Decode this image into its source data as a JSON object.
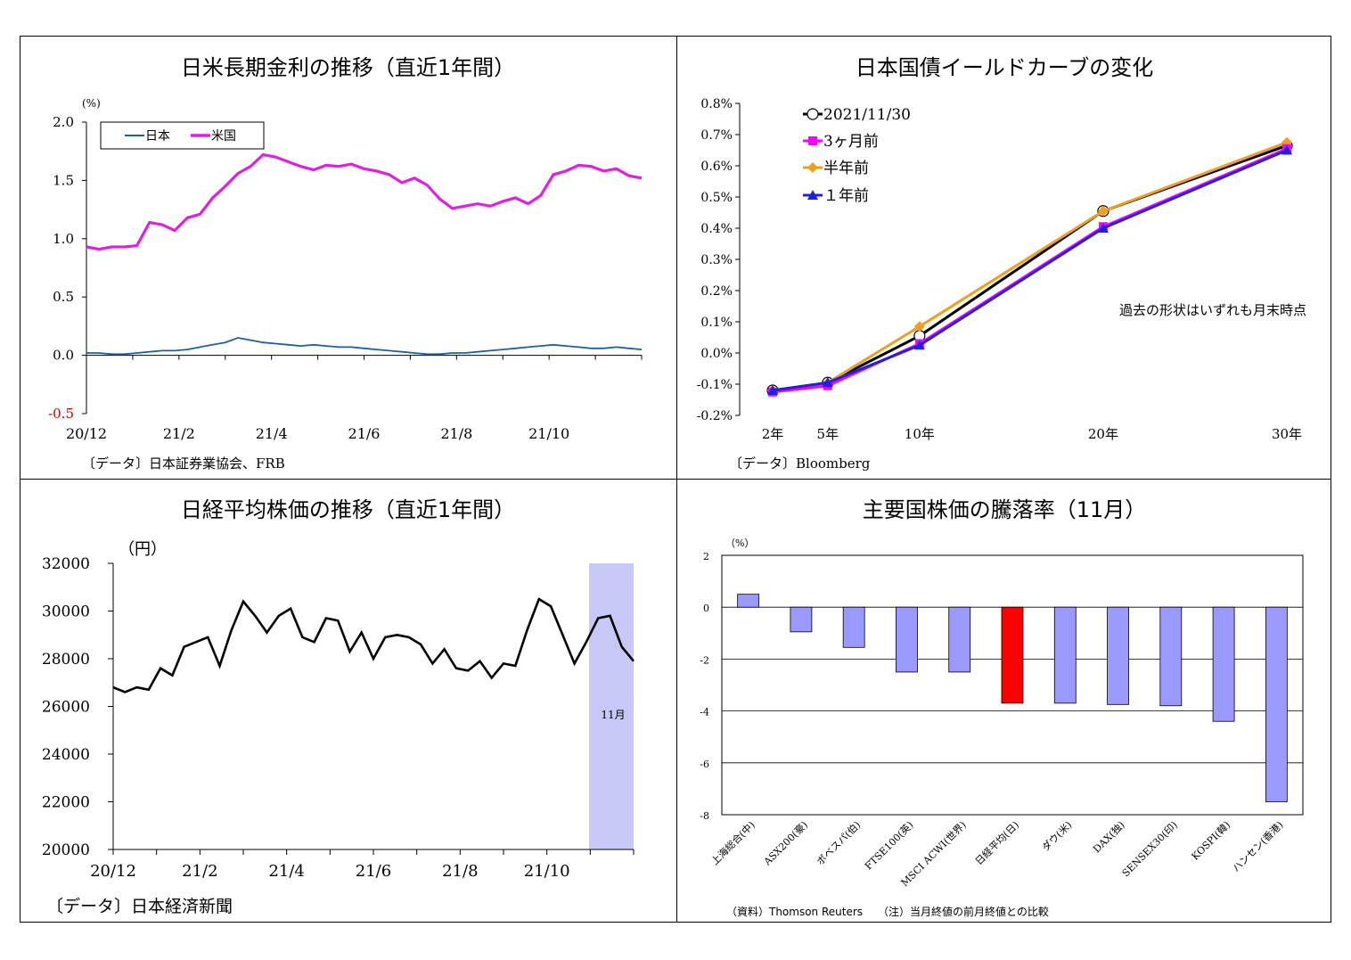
{
  "charts": {
    "rates": {
      "title": "日米長期金利の推移（直近1年間）",
      "unit": "(%)",
      "source": "〔データ〕日本証券業協会、FRB",
      "colors": {
        "japan": "#1f5fa0",
        "us": "#e020e0"
      }
    },
    "yield": {
      "title": "日本国債イールドカーブの変化",
      "note": "過去の形状はいずれも月末時点",
      "source": "〔データ〕Bloomberg",
      "colors": {
        "current": "#000000",
        "m3": "#ff00ff",
        "m6": "#f0a020",
        "y1": "#2020e0"
      }
    },
    "nikkei": {
      "title": "日経平均株価の推移（直近1年間）",
      "unit": "（円）",
      "source": "〔データ〕日本経済新聞",
      "highlight_label": "11月",
      "colors": {
        "line": "#000000",
        "highlight": "#c8c8f8"
      }
    },
    "stocks": {
      "title": "主要国株価の騰落率（11月）",
      "unit": "（%）",
      "source": "（資料）Thomson Reuters",
      "note": "（注）当月終値の前月終値との比較",
      "colors": {
        "bar": "#9999ff",
        "highlight": "#ff0000"
      }
    }
  },
  "chart_data": [
    {
      "type": "line",
      "id": "rates",
      "x_ticks": [
        "20/12",
        "21/2",
        "21/4",
        "21/6",
        "21/8",
        "21/10"
      ],
      "ylim": [
        -0.5,
        2.0
      ],
      "y_ticks": [
        "2.0",
        "1.5",
        "1.0",
        "0.5",
        "0.0",
        "-0.5"
      ],
      "y_tick_values": [
        2.0,
        1.5,
        1.0,
        0.5,
        0.0,
        -0.5
      ],
      "legend_position": "top-left",
      "series": [
        {
          "name": "日本",
          "values": [
            0.02,
            0.02,
            0.01,
            0.01,
            0.02,
            0.03,
            0.04,
            0.04,
            0.05,
            0.07,
            0.09,
            0.11,
            0.15,
            0.13,
            0.11,
            0.1,
            0.09,
            0.08,
            0.09,
            0.08,
            0.07,
            0.07,
            0.06,
            0.05,
            0.04,
            0.03,
            0.02,
            0.01,
            0.01,
            0.02,
            0.02,
            0.03,
            0.04,
            0.05,
            0.06,
            0.07,
            0.08,
            0.09,
            0.08,
            0.07,
            0.06,
            0.06,
            0.07,
            0.06,
            0.05
          ]
        },
        {
          "name": "米国",
          "values": [
            0.93,
            0.91,
            0.93,
            0.93,
            0.94,
            1.14,
            1.12,
            1.07,
            1.18,
            1.21,
            1.35,
            1.45,
            1.56,
            1.62,
            1.72,
            1.7,
            1.66,
            1.62,
            1.59,
            1.63,
            1.62,
            1.64,
            1.6,
            1.58,
            1.55,
            1.48,
            1.52,
            1.46,
            1.34,
            1.26,
            1.28,
            1.3,
            1.28,
            1.32,
            1.35,
            1.3,
            1.37,
            1.55,
            1.58,
            1.63,
            1.62,
            1.58,
            1.6,
            1.54,
            1.52
          ]
        }
      ]
    },
    {
      "type": "line",
      "id": "yield",
      "categories": [
        "2年",
        "5年",
        "10年",
        "20年",
        "30年"
      ],
      "x_years": [
        2,
        5,
        10,
        20,
        30
      ],
      "ylim": [
        -0.2,
        0.8
      ],
      "y_ticks": [
        "0.8%",
        "0.7%",
        "0.6%",
        "0.5%",
        "0.4%",
        "0.3%",
        "0.2%",
        "0.1%",
        "0.0%",
        "-0.1%",
        "-0.2%"
      ],
      "y_tick_values": [
        0.8,
        0.7,
        0.6,
        0.5,
        0.4,
        0.3,
        0.2,
        0.1,
        0.0,
        -0.1,
        -0.2
      ],
      "series": [
        {
          "name": "2021/11/30",
          "values": [
            -0.12,
            -0.095,
            0.055,
            0.455,
            0.665
          ]
        },
        {
          "name": "3ヶ月前",
          "values": [
            -0.125,
            -0.105,
            0.03,
            0.405,
            0.655
          ]
        },
        {
          "name": "半年前",
          "values": [
            -0.12,
            -0.095,
            0.085,
            0.455,
            0.675
          ]
        },
        {
          "name": "１年前",
          "values": [
            -0.12,
            -0.095,
            0.025,
            0.4,
            0.65
          ]
        }
      ]
    },
    {
      "type": "line",
      "id": "nikkei",
      "x_ticks": [
        "20/12",
        "21/2",
        "21/4",
        "21/6",
        "21/8",
        "21/10"
      ],
      "ylim": [
        20000,
        32000
      ],
      "y_ticks": [
        "32000",
        "30000",
        "28000",
        "26000",
        "24000",
        "22000",
        "20000"
      ],
      "y_tick_values": [
        32000,
        30000,
        28000,
        26000,
        24000,
        22000,
        20000
      ],
      "series": [
        {
          "name": "日経平均",
          "values": [
            26800,
            26600,
            26800,
            26700,
            27600,
            27300,
            28500,
            28700,
            28900,
            27700,
            29200,
            30400,
            29800,
            29100,
            29800,
            30100,
            28900,
            28700,
            29700,
            29600,
            28300,
            29100,
            28000,
            28900,
            29000,
            28900,
            28600,
            27800,
            28400,
            27600,
            27500,
            27900,
            27200,
            27800,
            27700,
            29200,
            30500,
            30200,
            29000,
            27800,
            28700,
            29700,
            29800,
            28500,
            27900
          ]
        }
      ]
    },
    {
      "type": "bar",
      "id": "stocks",
      "categories": [
        "上海総合(中)",
        "ASX200(豪)",
        "ボベスパ(伯)",
        "FTSE100(英)",
        "MSCI ACWI(世界)",
        "日経平均(日)",
        "ダウ(米)",
        "DAX(独)",
        "SENSEX30(印)",
        "KOSPI(韓)",
        "ハンセン(香港)"
      ],
      "values": [
        0.5,
        -0.95,
        -1.55,
        -2.5,
        -2.5,
        -3.7,
        -3.7,
        -3.75,
        -3.8,
        -4.4,
        -7.5
      ],
      "highlight_index": 5,
      "ylim": [
        -8,
        2
      ],
      "y_ticks": [
        "2",
        "0",
        "-2",
        "-4",
        "-6",
        "-8"
      ],
      "y_tick_values": [
        2,
        0,
        -2,
        -4,
        -6,
        -8
      ]
    }
  ]
}
